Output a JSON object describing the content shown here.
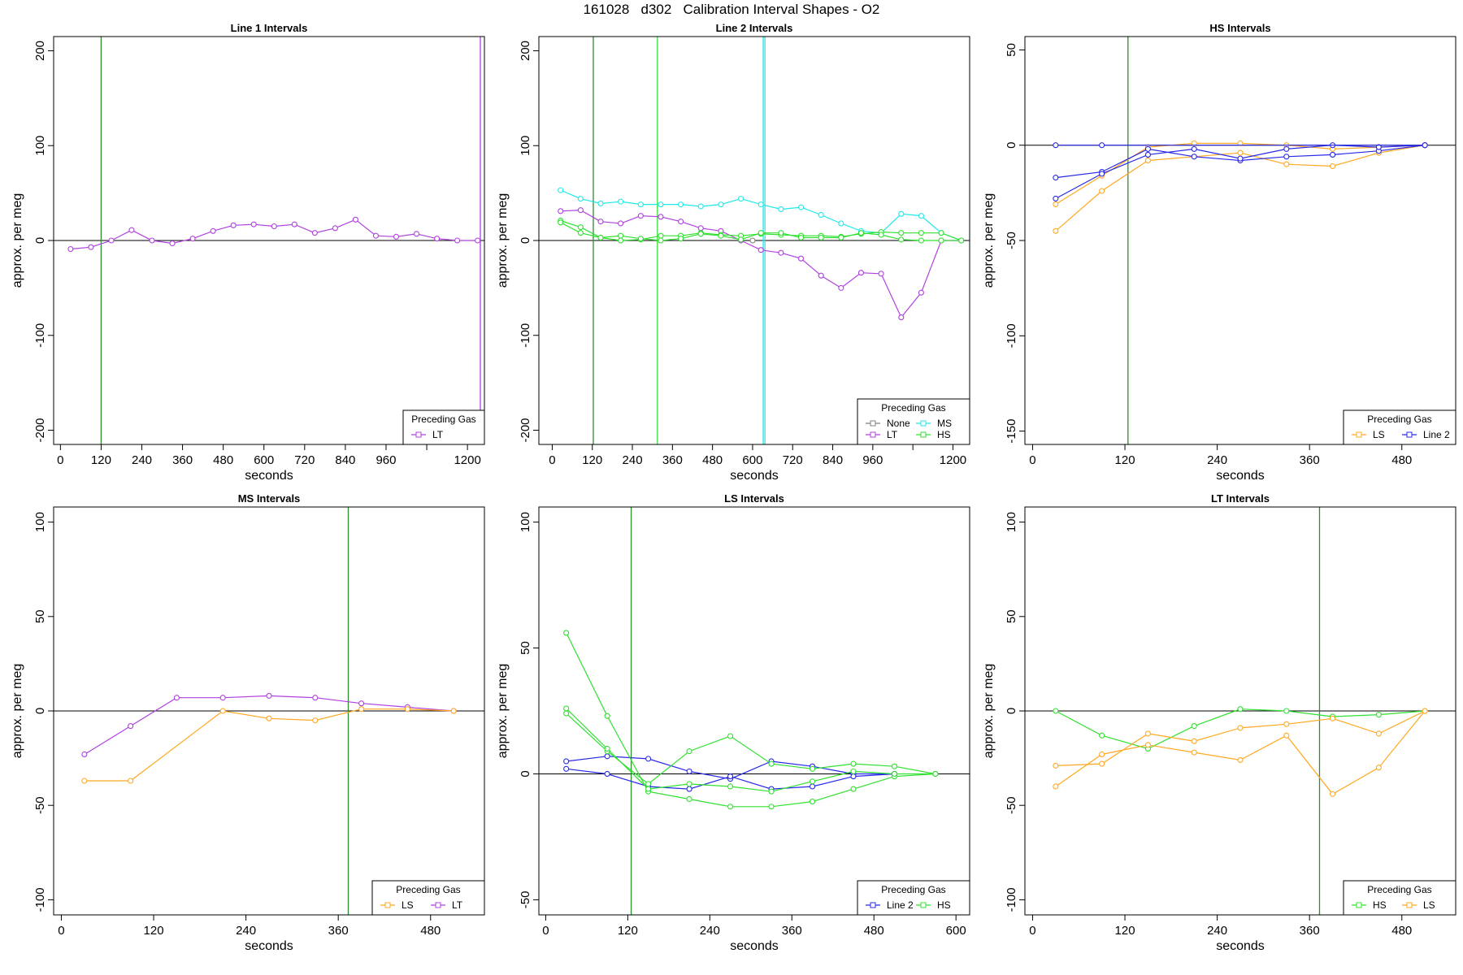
{
  "title": "161028   d302   Calibration Interval Shapes - O2",
  "colors": {
    "None": "#808080",
    "LT": "#b040e0",
    "MS": "#20e8e8",
    "HS": "#30e030",
    "LS": "#ffa820",
    "Line 2": "#2828e8",
    "marker": "#2e8b2e",
    "zero": "#000000"
  },
  "chart_data": [
    {
      "type": "line",
      "title": "Line 1 Intervals",
      "xlabel": "seconds",
      "ylabel": "approx. per meg",
      "xlim": [
        -20,
        1250
      ],
      "ylim": [
        -215,
        215
      ],
      "xticks": [
        0,
        120,
        240,
        360,
        480,
        600,
        720,
        840,
        960,
        1080,
        1200
      ],
      "xtick_labels": [
        "0",
        "120",
        "240",
        "360",
        "480",
        "600",
        "720",
        "840",
        "960",
        "",
        "1200"
      ],
      "yticks": [
        -200,
        -100,
        0,
        100,
        200
      ],
      "vlines": [
        {
          "x": 120,
          "color": "marker"
        },
        {
          "x": 1238,
          "color": "LT"
        }
      ],
      "legend": {
        "title": "Preceding Gas",
        "position": "bottom-right",
        "columns": 1,
        "entries": [
          "LT"
        ]
      },
      "series": [
        {
          "name": "LT",
          "color": "LT",
          "x": [
            30,
            90,
            150,
            210,
            270,
            330,
            390,
            450,
            510,
            570,
            630,
            690,
            750,
            810,
            870,
            930,
            990,
            1050,
            1110,
            1170,
            1230
          ],
          "y": [
            -9,
            -7,
            0,
            11,
            0,
            -3,
            2,
            10,
            16,
            17,
            15,
            17,
            8,
            13,
            22,
            5,
            4,
            7,
            2,
            0,
            0
          ]
        }
      ]
    },
    {
      "type": "line",
      "title": "Line 2 Intervals",
      "xlabel": "seconds",
      "ylabel": "approx. per meg",
      "xlim": [
        -40,
        1250
      ],
      "ylim": [
        -215,
        215
      ],
      "xticks": [
        0,
        120,
        240,
        360,
        480,
        600,
        720,
        840,
        960,
        1080,
        1200
      ],
      "xtick_labels": [
        "0",
        "120",
        "240",
        "360",
        "480",
        "600",
        "720",
        "840",
        "960",
        "",
        "1200"
      ],
      "yticks": [
        -200,
        -100,
        0,
        100,
        200
      ],
      "vlines": [
        {
          "x": 123,
          "color": "marker"
        },
        {
          "x": 315,
          "color": "HS"
        },
        {
          "x": 632,
          "color": "MS"
        },
        {
          "x": 637,
          "color": "MS"
        }
      ],
      "legend": {
        "title": "Preceding Gas",
        "position": "bottom-right",
        "columns": 2,
        "entries": [
          "None",
          "MS",
          "LT",
          "HS"
        ]
      },
      "series": [
        {
          "name": "None",
          "color": "None",
          "x": [
            600
          ],
          "y": [
            0
          ]
        },
        {
          "name": "MS",
          "color": "MS",
          "x": [
            25,
            85,
            145,
            205,
            265,
            325,
            385,
            445,
            505,
            565,
            625,
            685,
            745,
            805,
            865,
            925,
            985,
            1045,
            1105,
            1165,
            1225
          ],
          "y": [
            53,
            44,
            39,
            41,
            38,
            38,
            38,
            36,
            38,
            44,
            38,
            33,
            35,
            27,
            18,
            10,
            8,
            28,
            26,
            8,
            0
          ]
        },
        {
          "name": "LT",
          "color": "LT",
          "x": [
            25,
            85,
            145,
            205,
            265,
            325,
            385,
            445,
            505,
            565,
            625,
            685,
            745,
            805,
            865,
            925,
            985,
            1045,
            1105,
            1165,
            1225
          ],
          "y": [
            31,
            32,
            20,
            18,
            26,
            25,
            20,
            13,
            10,
            0,
            -10,
            -13,
            -19,
            -37,
            -50,
            -34,
            -35,
            -81,
            -55,
            0,
            0
          ]
        },
        {
          "name": "HS",
          "color": "HS",
          "x": [
            25,
            85,
            145,
            205,
            265,
            325,
            385,
            445,
            505,
            565,
            625,
            685,
            745,
            805,
            865,
            925,
            985,
            1045,
            1105,
            1165,
            1225
          ],
          "y": [
            21,
            14,
            3,
            0,
            1,
            5,
            5,
            8,
            6,
            5,
            7,
            6,
            5,
            5,
            4,
            7,
            9,
            8,
            8,
            8,
            0
          ]
        },
        {
          "name": "HS",
          "color": "HS",
          "x": [
            25,
            85,
            145,
            205,
            265,
            325,
            385,
            445,
            505,
            565,
            625,
            685,
            745,
            805,
            865,
            925,
            985,
            1045,
            1105,
            1165,
            1225
          ],
          "y": [
            19,
            8,
            3,
            5,
            2,
            0,
            2,
            7,
            5,
            1,
            8,
            8,
            3,
            3,
            3,
            8,
            6,
            1,
            0,
            0,
            0
          ]
        }
      ]
    },
    {
      "type": "line",
      "title": "HS Intervals",
      "xlabel": "seconds",
      "ylabel": "approx. per meg",
      "xlim": [
        -10,
        550
      ],
      "ylim": [
        -157,
        57
      ],
      "xticks": [
        0,
        120,
        240,
        360,
        480
      ],
      "xtick_labels": [
        "0",
        "120",
        "240",
        "360",
        "480"
      ],
      "yticks": [
        -150,
        -100,
        -50,
        0,
        50
      ],
      "vlines": [
        {
          "x": 124,
          "color": "marker"
        }
      ],
      "legend": {
        "title": "Preceding Gas",
        "position": "bottom-right",
        "columns": 2,
        "entries": [
          "LS",
          "Line 2"
        ]
      },
      "series": [
        {
          "name": "LS",
          "color": "LS",
          "x": [
            30,
            90,
            150,
            210,
            270,
            330,
            390,
            450,
            510
          ],
          "y": [
            -45,
            -24,
            -8,
            -6,
            -4,
            -10,
            -11,
            -4,
            0
          ]
        },
        {
          "name": "LS",
          "color": "LS",
          "x": [
            30,
            90,
            150,
            210,
            270,
            330,
            390,
            450,
            510
          ],
          "y": [
            -31,
            -16,
            -1,
            1,
            1,
            0,
            -2,
            -1,
            0
          ]
        },
        {
          "name": "Line 2",
          "color": "Line 2",
          "x": [
            30,
            90,
            150,
            210,
            270,
            330,
            390,
            450,
            510
          ],
          "y": [
            -17,
            -14,
            -2,
            -6,
            -8,
            -6,
            -5,
            -3,
            0
          ]
        },
        {
          "name": "Line 2",
          "color": "Line 2",
          "x": [
            30,
            90,
            150,
            210,
            270,
            330,
            390,
            450,
            510
          ],
          "y": [
            -28,
            -15,
            -5,
            -2,
            -7,
            -2,
            0,
            -1,
            0
          ]
        },
        {
          "name": "Line 2",
          "color": "Line 2",
          "x": [
            30,
            90,
            510
          ],
          "y": [
            0,
            0,
            0
          ]
        }
      ]
    },
    {
      "type": "line",
      "title": "MS Intervals",
      "xlabel": "seconds",
      "ylabel": "approx. per meg",
      "xlim": [
        -10,
        550
      ],
      "ylim": [
        -108,
        108
      ],
      "xticks": [
        0,
        120,
        240,
        360,
        480
      ],
      "xtick_labels": [
        "0",
        "120",
        "240",
        "360",
        "480"
      ],
      "yticks": [
        -100,
        -50,
        0,
        50,
        100
      ],
      "vlines": [
        {
          "x": 373,
          "color": "marker"
        }
      ],
      "legend": {
        "title": "Preceding Gas",
        "position": "bottom-right",
        "columns": 2,
        "entries": [
          "LS",
          "LT"
        ]
      },
      "series": [
        {
          "name": "LT",
          "color": "LT",
          "x": [
            30,
            90,
            150,
            210,
            270,
            330,
            390,
            450,
            510
          ],
          "y": [
            -23,
            -8,
            7,
            7,
            8,
            7,
            4,
            2,
            0
          ]
        },
        {
          "name": "LS",
          "color": "LS",
          "x": [
            30,
            90,
            210,
            270,
            330,
            390,
            450,
            510
          ],
          "y": [
            -37,
            -37,
            0,
            -4,
            -5,
            1,
            1,
            0
          ]
        }
      ]
    },
    {
      "type": "line",
      "title": "LS Intervals",
      "xlabel": "seconds",
      "ylabel": "approx. per meg",
      "xlim": [
        -10,
        620
      ],
      "ylim": [
        -56,
        106
      ],
      "xticks": [
        0,
        120,
        240,
        360,
        480,
        600
      ],
      "xtick_labels": [
        "0",
        "120",
        "240",
        "360",
        "480",
        "600"
      ],
      "yticks": [
        -50,
        0,
        50,
        100
      ],
      "vlines": [
        {
          "x": 125,
          "color": "marker"
        }
      ],
      "legend": {
        "title": "Preceding Gas",
        "position": "bottom-right",
        "columns": 2,
        "entries": [
          "Line 2",
          "HS"
        ]
      },
      "series": [
        {
          "name": "Line 2",
          "color": "Line 2",
          "x": [
            30,
            90,
            150,
            210,
            270,
            330,
            390,
            450,
            510
          ],
          "y": [
            5,
            7,
            6,
            1,
            -2,
            5,
            3,
            0,
            0
          ]
        },
        {
          "name": "Line 2",
          "color": "Line 2",
          "x": [
            30,
            90,
            150,
            210,
            270,
            330,
            390,
            450,
            510
          ],
          "y": [
            2,
            0,
            -5,
            -6,
            -1,
            -6,
            -5,
            -1,
            0
          ]
        },
        {
          "name": "HS",
          "color": "HS",
          "x": [
            30,
            90,
            150,
            210,
            270,
            330,
            390,
            450,
            510,
            570
          ],
          "y": [
            56,
            23,
            -7,
            -10,
            -13,
            -13,
            -11,
            -6,
            -1,
            0
          ]
        },
        {
          "name": "HS",
          "color": "HS",
          "x": [
            30,
            90,
            150,
            210,
            270,
            330,
            390,
            450,
            510,
            570
          ],
          "y": [
            24,
            9,
            -4,
            9,
            15,
            4,
            2,
            4,
            3,
            0
          ]
        },
        {
          "name": "HS",
          "color": "HS",
          "x": [
            30,
            90,
            150,
            210,
            270,
            330,
            390,
            450,
            510,
            570
          ],
          "y": [
            26,
            10,
            -6,
            -4,
            -5,
            -7,
            -3,
            1,
            0,
            0
          ]
        }
      ]
    },
    {
      "type": "line",
      "title": "LT Intervals",
      "xlabel": "seconds",
      "ylabel": "approx. per meg",
      "xlim": [
        -10,
        550
      ],
      "ylim": [
        -108,
        108
      ],
      "xticks": [
        0,
        120,
        240,
        360,
        480
      ],
      "xtick_labels": [
        "0",
        "120",
        "240",
        "360",
        "480"
      ],
      "yticks": [
        -100,
        -50,
        0,
        50,
        100
      ],
      "vlines": [
        {
          "x": 373,
          "color": "marker"
        }
      ],
      "legend": {
        "title": "Preceding Gas",
        "position": "bottom-right",
        "columns": 2,
        "entries": [
          "HS",
          "LS"
        ]
      },
      "series": [
        {
          "name": "HS",
          "color": "HS",
          "x": [
            30,
            90,
            150,
            210,
            270,
            330,
            390,
            450,
            510
          ],
          "y": [
            0,
            -13,
            -20,
            -8,
            1,
            0,
            -3,
            -2,
            0
          ]
        },
        {
          "name": "LS",
          "color": "LS",
          "x": [
            30,
            90,
            150,
            210,
            270,
            330,
            390,
            450,
            510
          ],
          "y": [
            -29,
            -28,
            -12,
            -16,
            -9,
            -7,
            -4,
            -12,
            0
          ]
        },
        {
          "name": "LS",
          "color": "LS",
          "x": [
            30,
            90,
            150,
            210,
            270,
            330,
            390,
            450,
            510
          ],
          "y": [
            -40,
            -23,
            -18,
            -22,
            -26,
            -13,
            -44,
            -30,
            0
          ]
        }
      ]
    }
  ]
}
